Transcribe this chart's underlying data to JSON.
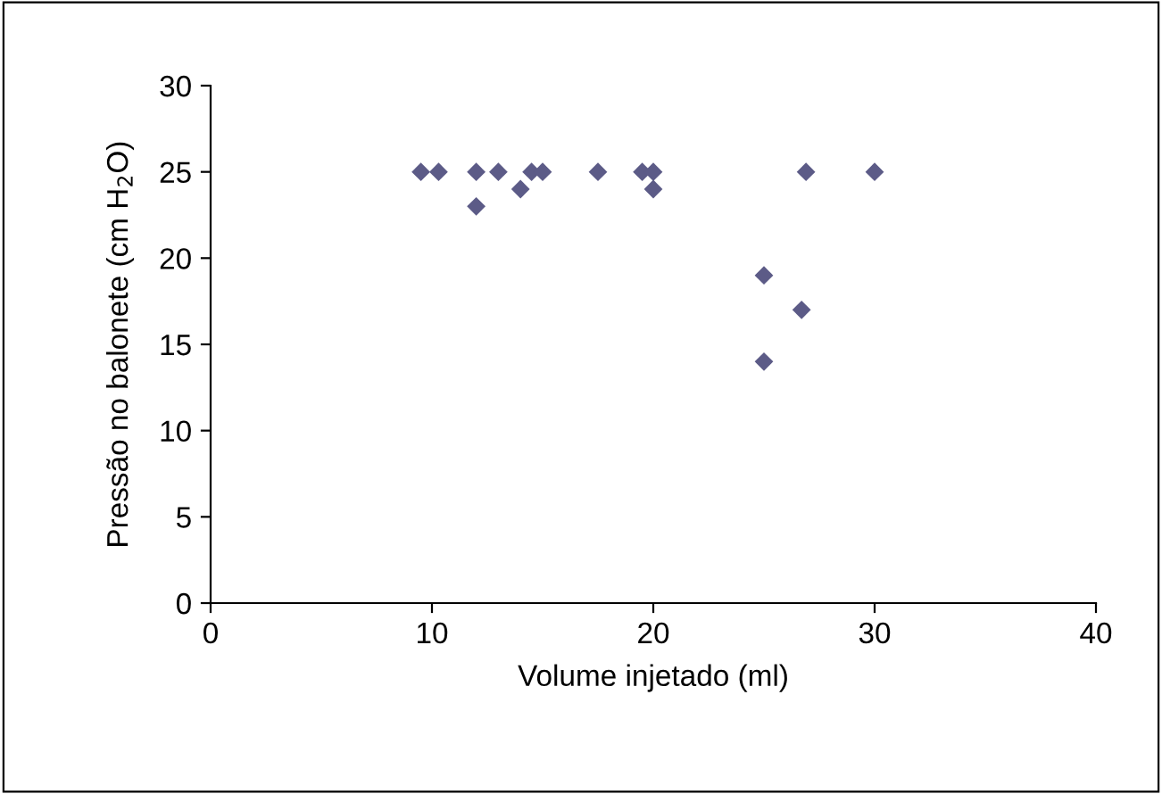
{
  "chart_data": {
    "type": "scatter",
    "xlabel": "Volume injetado (ml)",
    "ylabel": "Pressão no balonete (cm H$_{2}$O)",
    "x": [
      9.5,
      10.3,
      12,
      13,
      14.5,
      15,
      17.5,
      19.5,
      20,
      12,
      14,
      20,
      25,
      25,
      26.7,
      26.9,
      30
    ],
    "series": [
      {
        "color": "#5c5b87",
        "values": [
          25,
          25,
          25,
          25,
          25,
          25,
          25,
          25,
          25,
          23,
          24,
          24,
          19,
          14,
          17,
          25,
          25
        ]
      }
    ],
    "marker": "diamond",
    "xlim": [
      0,
      40
    ],
    "xticks": [
      0,
      10,
      20,
      30,
      40
    ],
    "ylim": [
      0,
      30
    ],
    "yticks": [
      0,
      5,
      10,
      15,
      20,
      25,
      30
    ],
    "grid": false,
    "legend": false
  }
}
